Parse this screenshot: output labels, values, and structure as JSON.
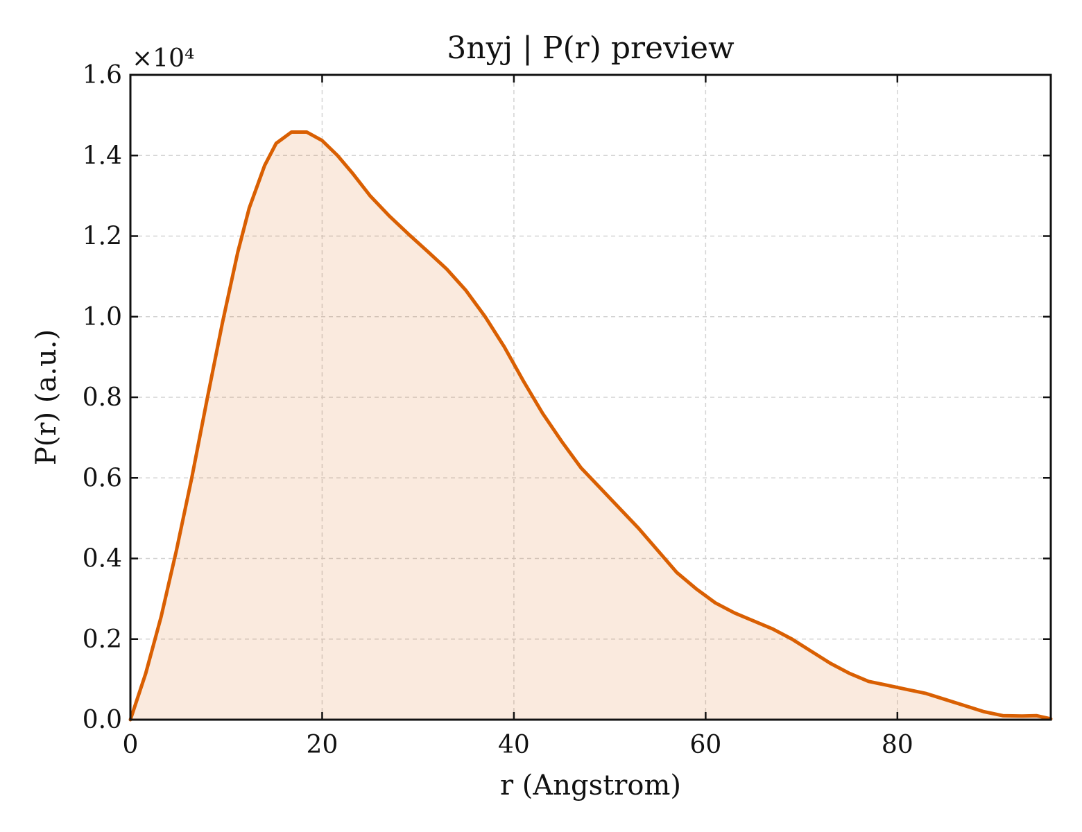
{
  "chart_data": {
    "type": "area",
    "title": "3nyj | P(r) preview",
    "xlabel": "r (Angstrom)",
    "ylabel": "P(r) (a.u.)",
    "y_multiplier_label": "×10⁴",
    "xlim": [
      0,
      96
    ],
    "ylim": [
      0,
      1.6
    ],
    "xticks": [
      0,
      20,
      40,
      60,
      80
    ],
    "yticks": [
      0.0,
      0.2,
      0.4,
      0.6,
      0.8,
      1.0,
      1.2,
      1.4,
      1.6
    ],
    "xtick_labels": [
      "0",
      "20",
      "40",
      "60",
      "80"
    ],
    "ytick_labels": [
      "0.0",
      "0.2",
      "0.4",
      "0.6",
      "0.8",
      "1.0",
      "1.2",
      "1.4",
      "1.6"
    ],
    "grid": true,
    "line_color": "#d95f02",
    "fill_color": "#d95f02",
    "fill_opacity": 0.13,
    "series": [
      {
        "x": [
          0,
          1.6,
          3.2,
          4.8,
          6.4,
          8.0,
          9.6,
          11.2,
          12.4,
          14.0,
          15.2,
          16.8,
          18.4,
          20.0,
          21.6,
          23.2,
          25.0,
          27.0,
          29.0,
          31.0,
          33.0,
          35.0,
          37.0,
          39.0,
          41.0,
          43.0,
          45.0,
          47.0,
          49.0,
          51.0,
          53.0,
          55.0,
          57.0,
          59.0,
          61.0,
          63.0,
          65.0,
          67.0,
          69.0,
          71.0,
          73.0,
          75.0,
          77.0,
          79.0,
          81.0,
          83.0,
          85.0,
          87.0,
          89.0,
          91.0,
          93.0,
          94.5,
          96.0
        ],
        "y": [
          0.0,
          0.115,
          0.255,
          0.42,
          0.6,
          0.795,
          0.985,
          1.16,
          1.27,
          1.375,
          1.43,
          1.458,
          1.458,
          1.437,
          1.4,
          1.355,
          1.3,
          1.25,
          1.205,
          1.162,
          1.118,
          1.065,
          1.0,
          0.925,
          0.84,
          0.76,
          0.69,
          0.625,
          0.575,
          0.525,
          0.475,
          0.42,
          0.365,
          0.325,
          0.29,
          0.265,
          0.245,
          0.225,
          0.2,
          0.17,
          0.14,
          0.115,
          0.095,
          0.085,
          0.075,
          0.065,
          0.05,
          0.035,
          0.02,
          0.01,
          0.009,
          0.01,
          0.002
        ]
      }
    ]
  }
}
